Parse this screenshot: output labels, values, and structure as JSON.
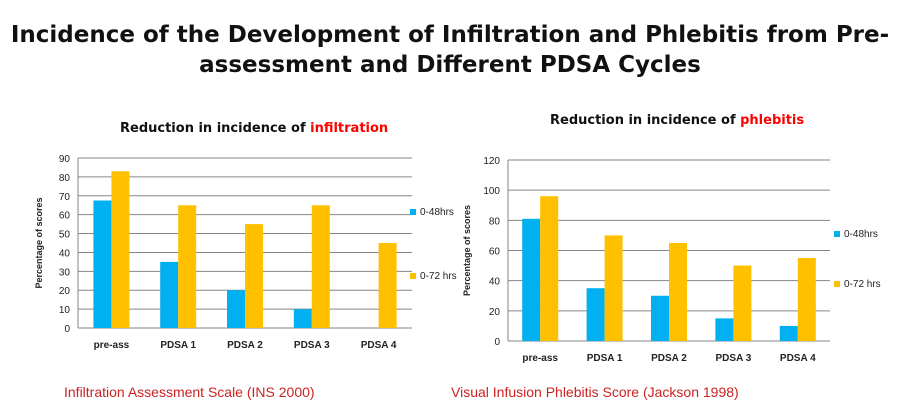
{
  "page": {
    "title_line1": "Incidence of the Development of Infiltration and Phlebitis from Pre-",
    "title_line2": "assessment and Different PDSA Cycles",
    "caption_left": "Infiltration Assessment Scale (INS 2000)",
    "caption_right": "Visual Infusion Phlebitis Score (Jackson 1998)"
  },
  "colors": {
    "series1": "#00b0f0",
    "series2": "#ffc000",
    "highlight": "#ff0000",
    "grid": "#868686"
  },
  "chart_data": [
    {
      "type": "bar",
      "title_prefix": "Reduction in incidence of ",
      "title_highlight": "infiltration",
      "xlabel": "",
      "ylabel": "Percentage of scores",
      "ylim": [
        0,
        90
      ],
      "yticks": [
        0,
        10,
        20,
        30,
        40,
        50,
        60,
        70,
        80,
        90
      ],
      "categories": [
        "pre-ass",
        "PDSA 1",
        "PDSA 2",
        "PDSA 3",
        "PDSA 4"
      ],
      "series": [
        {
          "name": "0-48hrs",
          "values": [
            67.5,
            35,
            20,
            10,
            0
          ]
        },
        {
          "name": "0-72 hrs",
          "values": [
            83,
            65,
            55,
            65,
            45
          ]
        }
      ],
      "grid": true,
      "legend": "right"
    },
    {
      "type": "bar",
      "title_prefix": "Reduction in incidence of ",
      "title_highlight": "phlebitis",
      "xlabel": "",
      "ylabel": "Percentage of scores",
      "ylim": [
        0,
        120
      ],
      "yticks": [
        0,
        20,
        40,
        60,
        80,
        100,
        120
      ],
      "categories": [
        "pre-ass",
        "PDSA 1",
        "PDSA 2",
        "PDSA 3",
        "PDSA 4"
      ],
      "series": [
        {
          "name": "0-48hrs",
          "values": [
            81,
            35,
            30,
            15,
            10
          ]
        },
        {
          "name": "0-72 hrs",
          "values": [
            96,
            70,
            65,
            50,
            55
          ]
        }
      ],
      "grid": true,
      "legend": "right"
    }
  ]
}
